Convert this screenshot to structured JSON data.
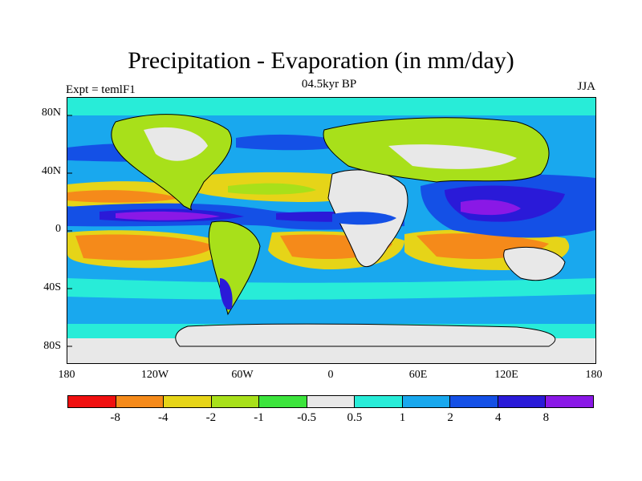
{
  "figure": {
    "title": "Precipitation - Evaporation (in mm/day)",
    "left_label": "Expt = temlF1",
    "center_label": "04.5kyr BP",
    "right_label": "JJA"
  },
  "axes": {
    "y_ticks": [
      "80N",
      "40N",
      "0",
      "40S",
      "80S"
    ],
    "x_ticks": [
      "180",
      "120W",
      "60W",
      "0",
      "60E",
      "120E",
      "180"
    ]
  },
  "colorbar": {
    "colors": [
      "#f01010",
      "#f58a1a",
      "#e6d418",
      "#a8e01a",
      "#3ce43c",
      "#e8e8e8",
      "#28ecd8",
      "#19a8ee",
      "#1450e6",
      "#2a1ad8",
      "#8a18e6"
    ],
    "labels": [
      "-8",
      "-4",
      "-2",
      "-1",
      "-0.5",
      "0.5",
      "1",
      "2",
      "4",
      "8"
    ]
  },
  "palette": {
    "ocean_bg": "#19a8ee",
    "dry": "#e8e8e8",
    "coast": "#000000"
  }
}
